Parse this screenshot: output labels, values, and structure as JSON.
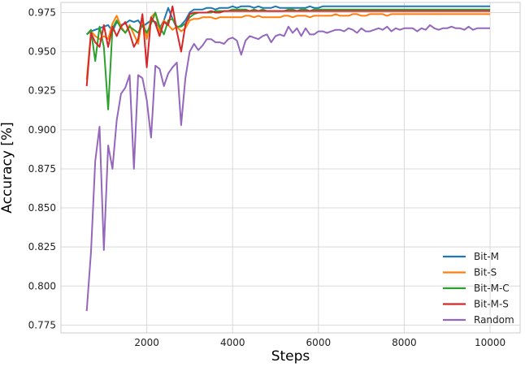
{
  "chart_data": {
    "type": "line",
    "xlabel": "Steps",
    "ylabel": "Accuracy [%]",
    "xlim": [
      0,
      10700
    ],
    "ylim": [
      0.77,
      0.9815
    ],
    "xticks": [
      2000,
      4000,
      6000,
      8000,
      10000
    ],
    "xtick_labels": [
      "2000",
      "4000",
      "6000",
      "8000",
      "10000"
    ],
    "yticks": [
      0.775,
      0.8,
      0.825,
      0.85,
      0.875,
      0.9,
      0.925,
      0.95,
      0.975
    ],
    "ytick_labels": [
      "0.775",
      "0.800",
      "0.825",
      "0.850",
      "0.875",
      "0.900",
      "0.925",
      "0.950",
      "0.975"
    ],
    "grid": true,
    "legend_position": "lower-right",
    "x": [
      600,
      700,
      800,
      900,
      1000,
      1100,
      1200,
      1300,
      1400,
      1500,
      1600,
      1700,
      1800,
      1900,
      2000,
      2100,
      2200,
      2300,
      2400,
      2500,
      2600,
      2700,
      2800,
      2900,
      3000,
      3100,
      3200,
      3300,
      3400,
      3500,
      3600,
      3700,
      3800,
      3900,
      4000,
      4100,
      4200,
      4300,
      4400,
      4500,
      4600,
      4700,
      4800,
      4900,
      5000,
      5100,
      5200,
      5300,
      5400,
      5500,
      5600,
      5700,
      5800,
      5900,
      6000,
      6100,
      6200,
      6300,
      6400,
      6500,
      6600,
      6700,
      6800,
      6900,
      7000,
      7100,
      7200,
      7300,
      7400,
      7500,
      7600,
      7700,
      7800,
      7900,
      8000,
      8100,
      8200,
      8300,
      8400,
      8500,
      8600,
      8700,
      8800,
      8900,
      9000,
      9100,
      9200,
      9300,
      9400,
      9500,
      9600,
      9700,
      9800,
      9900,
      10000
    ],
    "series": [
      {
        "name": "Bit-M",
        "color": "#1f77b4",
        "values": [
          0.961,
          0.963,
          0.964,
          0.965,
          0.966,
          0.967,
          0.963,
          0.969,
          0.967,
          0.968,
          0.97,
          0.969,
          0.97,
          0.966,
          0.968,
          0.97,
          0.969,
          0.965,
          0.97,
          0.978,
          0.971,
          0.965,
          0.967,
          0.97,
          0.975,
          0.977,
          0.977,
          0.977,
          0.978,
          0.978,
          0.977,
          0.978,
          0.978,
          0.978,
          0.979,
          0.978,
          0.979,
          0.979,
          0.979,
          0.978,
          0.979,
          0.978,
          0.978,
          0.978,
          0.979,
          0.978,
          0.978,
          0.978,
          0.978,
          0.978,
          0.978,
          0.978,
          0.979,
          0.978,
          0.978,
          0.979,
          0.979,
          0.979,
          0.979,
          0.979,
          0.979,
          0.979,
          0.979,
          0.979,
          0.979,
          0.979,
          0.979,
          0.979,
          0.979,
          0.979,
          0.979,
          0.979,
          0.979,
          0.979,
          0.979,
          0.979,
          0.979,
          0.979,
          0.979,
          0.979,
          0.979,
          0.979,
          0.979,
          0.979,
          0.979,
          0.979,
          0.979,
          0.979,
          0.979,
          0.979,
          0.979,
          0.979,
          0.979,
          0.979,
          0.979
        ]
      },
      {
        "name": "Bit-S",
        "color": "#ff7f0e",
        "values": [
          0.932,
          0.963,
          0.96,
          0.958,
          0.96,
          0.958,
          0.968,
          0.973,
          0.966,
          0.962,
          0.967,
          0.961,
          0.955,
          0.972,
          0.958,
          0.972,
          0.975,
          0.963,
          0.97,
          0.967,
          0.964,
          0.966,
          0.963,
          0.965,
          0.97,
          0.971,
          0.971,
          0.972,
          0.972,
          0.972,
          0.971,
          0.972,
          0.972,
          0.972,
          0.972,
          0.972,
          0.972,
          0.973,
          0.973,
          0.972,
          0.973,
          0.972,
          0.972,
          0.972,
          0.972,
          0.972,
          0.973,
          0.973,
          0.972,
          0.973,
          0.973,
          0.973,
          0.972,
          0.973,
          0.973,
          0.973,
          0.973,
          0.973,
          0.974,
          0.973,
          0.973,
          0.973,
          0.974,
          0.974,
          0.973,
          0.973,
          0.974,
          0.974,
          0.974,
          0.974,
          0.973,
          0.974,
          0.974,
          0.974,
          0.974,
          0.974,
          0.974,
          0.974,
          0.974,
          0.974,
          0.974,
          0.974,
          0.974,
          0.974,
          0.974,
          0.974,
          0.974,
          0.974,
          0.974,
          0.974,
          0.974,
          0.974,
          0.974,
          0.974,
          0.974
        ]
      },
      {
        "name": "Bit-M-C",
        "color": "#2ca02c",
        "values": [
          0.961,
          0.964,
          0.944,
          0.966,
          0.953,
          0.913,
          0.965,
          0.97,
          0.965,
          0.962,
          0.966,
          0.964,
          0.962,
          0.967,
          0.962,
          0.968,
          0.975,
          0.966,
          0.961,
          0.97,
          0.971,
          0.966,
          0.966,
          0.968,
          0.972,
          0.974,
          0.975,
          0.975,
          0.975,
          0.975,
          0.976,
          0.976,
          0.976,
          0.976,
          0.977,
          0.977,
          0.977,
          0.977,
          0.976,
          0.977,
          0.976,
          0.977,
          0.976,
          0.976,
          0.976,
          0.976,
          0.976,
          0.977,
          0.977,
          0.976,
          0.977,
          0.977,
          0.976,
          0.977,
          0.977,
          0.977,
          0.977,
          0.977,
          0.977,
          0.977,
          0.977,
          0.977,
          0.977,
          0.977,
          0.977,
          0.977,
          0.977,
          0.977,
          0.977,
          0.977,
          0.977,
          0.977,
          0.977,
          0.977,
          0.977,
          0.977,
          0.977,
          0.977,
          0.977,
          0.977,
          0.977,
          0.977,
          0.977,
          0.977,
          0.977,
          0.977,
          0.977,
          0.977,
          0.977,
          0.977,
          0.977,
          0.977,
          0.977,
          0.977,
          0.977
        ]
      },
      {
        "name": "Bit-M-S",
        "color": "#d62728",
        "values": [
          0.928,
          0.962,
          0.956,
          0.953,
          0.967,
          0.953,
          0.966,
          0.96,
          0.966,
          0.969,
          0.962,
          0.953,
          0.958,
          0.974,
          0.94,
          0.972,
          0.968,
          0.96,
          0.969,
          0.967,
          0.979,
          0.963,
          0.95,
          0.967,
          0.974,
          0.975,
          0.975,
          0.975,
          0.975,
          0.976,
          0.975,
          0.975,
          0.976,
          0.976,
          0.976,
          0.976,
          0.976,
          0.976,
          0.976,
          0.976,
          0.976,
          0.976,
          0.976,
          0.976,
          0.976,
          0.976,
          0.976,
          0.976,
          0.976,
          0.976,
          0.976,
          0.976,
          0.976,
          0.976,
          0.976,
          0.976,
          0.976,
          0.976,
          0.976,
          0.976,
          0.976,
          0.976,
          0.976,
          0.976,
          0.976,
          0.976,
          0.976,
          0.976,
          0.976,
          0.976,
          0.976,
          0.976,
          0.976,
          0.976,
          0.976,
          0.976,
          0.976,
          0.976,
          0.976,
          0.976,
          0.976,
          0.976,
          0.976,
          0.976,
          0.976,
          0.976,
          0.976,
          0.976,
          0.976,
          0.976,
          0.976,
          0.976,
          0.976,
          0.976,
          0.976
        ]
      },
      {
        "name": "Random",
        "color": "#9467bd",
        "values": [
          0.784,
          0.822,
          0.88,
          0.902,
          0.823,
          0.89,
          0.875,
          0.906,
          0.923,
          0.927,
          0.935,
          0.875,
          0.935,
          0.933,
          0.919,
          0.895,
          0.941,
          0.939,
          0.928,
          0.936,
          0.94,
          0.943,
          0.903,
          0.933,
          0.95,
          0.955,
          0.951,
          0.954,
          0.958,
          0.958,
          0.956,
          0.956,
          0.955,
          0.958,
          0.959,
          0.957,
          0.948,
          0.957,
          0.96,
          0.959,
          0.958,
          0.96,
          0.961,
          0.956,
          0.96,
          0.961,
          0.96,
          0.966,
          0.962,
          0.965,
          0.96,
          0.965,
          0.961,
          0.961,
          0.963,
          0.963,
          0.962,
          0.963,
          0.964,
          0.964,
          0.963,
          0.965,
          0.964,
          0.962,
          0.965,
          0.963,
          0.963,
          0.964,
          0.965,
          0.964,
          0.966,
          0.963,
          0.965,
          0.964,
          0.965,
          0.965,
          0.965,
          0.963,
          0.965,
          0.964,
          0.967,
          0.965,
          0.964,
          0.965,
          0.965,
          0.966,
          0.965,
          0.965,
          0.964,
          0.966,
          0.964,
          0.965,
          0.965,
          0.965,
          0.965
        ]
      }
    ]
  }
}
